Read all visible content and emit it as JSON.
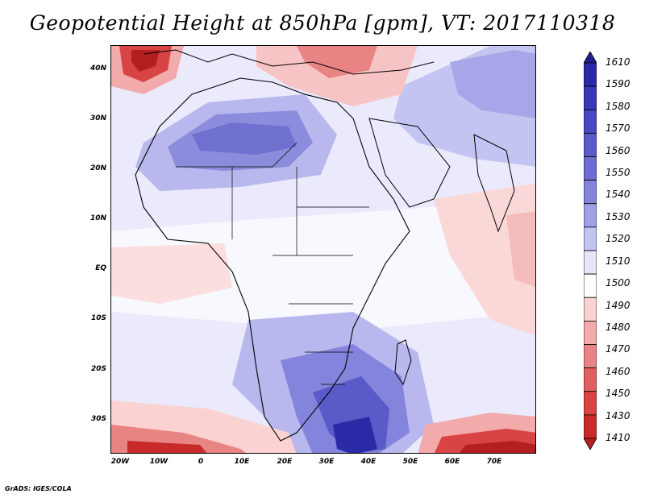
{
  "title": "Geopotential Height at 850hPa [gpm], VT: 2017110318",
  "footer": "GrADS: IGES/COLA",
  "lat_labels": [
    "40N",
    "30N",
    "20N",
    "10N",
    "EQ",
    "10S",
    "20S",
    "30S"
  ],
  "lon_labels": [
    "20W",
    "10W",
    "0",
    "10E",
    "20E",
    "30E",
    "40E",
    "50E",
    "60E",
    "70E"
  ],
  "colorbar": {
    "labels": [
      "1610",
      "1590",
      "1580",
      "1570",
      "1560",
      "1550",
      "1540",
      "1530",
      "1520",
      "1510",
      "1500",
      "1490",
      "1480",
      "1470",
      "1460",
      "1450",
      "1430",
      "1410"
    ],
    "colors": [
      "#1e1e8c",
      "#2a2aa6",
      "#3838b4",
      "#4848c0",
      "#5a5ac8",
      "#6e6ed2",
      "#8484dc",
      "#a0a0e6",
      "#c4c4f2",
      "#e6e6fa",
      "#ffffff",
      "#fad2d2",
      "#f2aaaa",
      "#e88484",
      "#e06060",
      "#d84444",
      "#c82a2a",
      "#b41e1e"
    ]
  },
  "map": {
    "region": "Africa and surrounding oceans",
    "variable": "Geopotential Height at 850hPa",
    "units": "gpm",
    "valid_time": "2017110318",
    "lon_range": [
      -22,
      80
    ],
    "lat_range": [
      -37,
      45
    ]
  }
}
